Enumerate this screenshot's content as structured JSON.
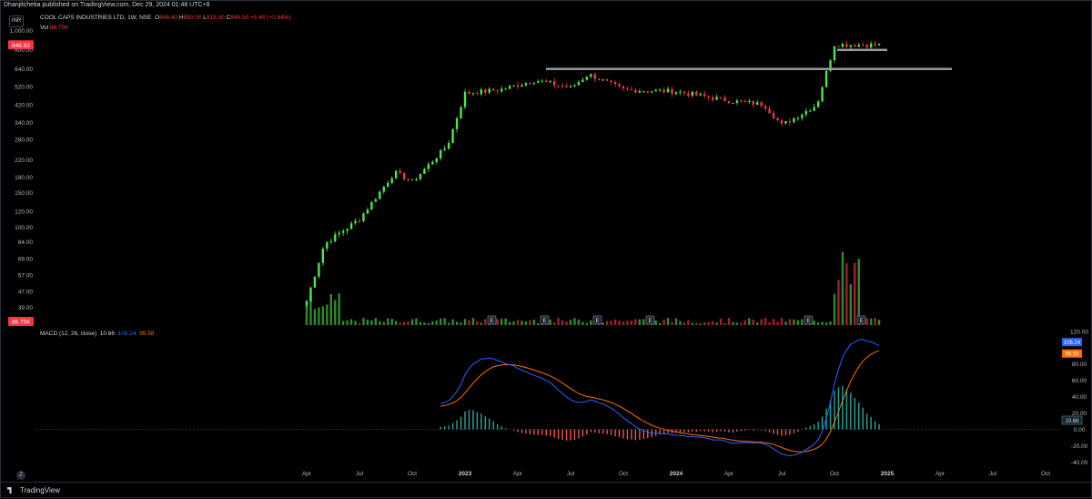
{
  "header": {
    "published": "Dhanjitchetia published on TradingView.com, Dec 29, 2024 01:48 UTC+8",
    "symbol": "COOL CAPS INDUSTRIES LTD, 1W, NSE",
    "o_label": "O",
    "o_val": "848.40",
    "h_label": "H",
    "h_val": "850.00",
    "l_label": "L",
    "l_val": "815.00",
    "c_label": "C",
    "c_val": "846.50",
    "change": "+5.40 (+0.64%)",
    "currency": "INR",
    "vol_label": "Vol",
    "vol_val": "88.75K"
  },
  "price_axis": {
    "ticks": [
      "1,000.00",
      "800.00",
      "640.00",
      "520.00",
      "420.00",
      "340.00",
      "280.00",
      "220.00",
      "180.00",
      "150.00",
      "120.00",
      "100.00",
      "84.00",
      "69.00",
      "57.00",
      "47.00",
      "39.00"
    ],
    "tick_values": [
      1000,
      800,
      640,
      520,
      420,
      340,
      280,
      220,
      180,
      150,
      120,
      100,
      84,
      69,
      57,
      47,
      39
    ],
    "last_price_label": "846.50",
    "volume_label": "88.75K"
  },
  "macd": {
    "legend_title": "MACD (12, 26, close)",
    "hist_val": "10.66",
    "macd_val": "106.24",
    "signal_val": "95.58",
    "ticks": [
      "120.00",
      "80.00",
      "60.00",
      "40.00",
      "20.00",
      "0.00",
      "-20.00",
      "-40.00"
    ],
    "tick_values": [
      120,
      80,
      60,
      40,
      20,
      0,
      -20,
      -40
    ]
  },
  "time_axis": [
    "Apr",
    "Jul",
    "Oct",
    "2023",
    "Apr",
    "Jul",
    "Oct",
    "2024",
    "Apr",
    "Jul",
    "Oct",
    "2025",
    "Apr",
    "Jul",
    "Oct"
  ],
  "earnings_marker": "E",
  "footer": {
    "brand": "TradingView",
    "corner_left": "Z"
  },
  "colors": {
    "up": "#4de64d",
    "down": "#f23645",
    "macd": "#2962ff",
    "signal": "#ff6d00",
    "hist_up": "#26a69a",
    "hist_down": "#ef5350",
    "bg": "#000000"
  },
  "chart_data": [
    {
      "type": "candlestick",
      "title": "COOL CAPS INDUSTRIES LTD, 1W, NSE",
      "scale": "log",
      "ylim": [
        35,
        1050
      ],
      "x_labels": [
        "Apr",
        "Jul",
        "Oct",
        "2023",
        "Apr",
        "Jul",
        "Oct",
        "2024",
        "Apr",
        "Jul",
        "Oct",
        "2025",
        "Apr",
        "Jul",
        "Oct"
      ],
      "horizontal_levels": [
        640,
        800
      ],
      "key_prices": [
        {
          "date": "2022-04",
          "close": 42
        },
        {
          "date": "2022-05",
          "close": 82
        },
        {
          "date": "2022-07",
          "close": 110
        },
        {
          "date": "2022-09",
          "close": 190
        },
        {
          "date": "2022-10",
          "close": 170
        },
        {
          "date": "2022-12",
          "close": 260
        },
        {
          "date": "2023-01",
          "close": 480
        },
        {
          "date": "2023-03",
          "close": 500
        },
        {
          "date": "2023-05",
          "close": 560
        },
        {
          "date": "2023-07",
          "close": 510
        },
        {
          "date": "2023-08",
          "close": 600
        },
        {
          "date": "2023-10",
          "close": 500
        },
        {
          "date": "2024-01",
          "close": 490
        },
        {
          "date": "2024-04",
          "close": 440
        },
        {
          "date": "2024-06",
          "close": 420
        },
        {
          "date": "2024-07",
          "close": 330
        },
        {
          "date": "2024-09",
          "close": 420
        },
        {
          "date": "2024-10",
          "close": 850
        },
        {
          "date": "2024-12",
          "close": 846.5
        }
      ],
      "last": {
        "open": 848.4,
        "high": 850.0,
        "low": 815.0,
        "close": 846.5,
        "volume": "88.75K"
      }
    },
    {
      "type": "line",
      "title": "MACD (12, 26, close)",
      "series": [
        {
          "name": "MACD",
          "last": 106.24
        },
        {
          "name": "Signal",
          "last": 95.58
        },
        {
          "name": "Histogram",
          "last": 10.66
        }
      ],
      "ylim": [
        -45,
        120
      ]
    }
  ]
}
